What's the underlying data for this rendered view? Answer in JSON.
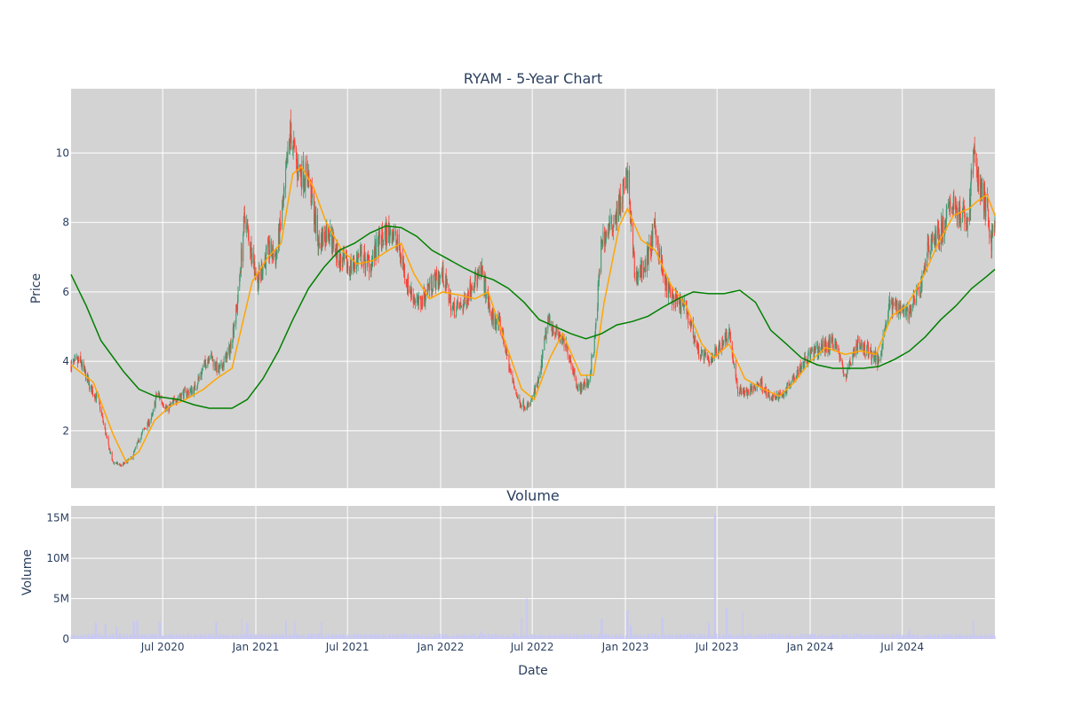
{
  "chart_data": {
    "type": "candlestick",
    "title": "RYAM - 5-Year Chart",
    "x_range": [
      "2020-01-02",
      "2024-12-31"
    ],
    "x_ticks": [
      {
        "date": "2020-07-01",
        "label": "Jul 2020"
      },
      {
        "date": "2021-01-01",
        "label": "Jan 2021"
      },
      {
        "date": "2021-07-01",
        "label": "Jul 2021"
      },
      {
        "date": "2022-01-01",
        "label": "Jan 2022"
      },
      {
        "date": "2022-07-01",
        "label": "Jul 2022"
      },
      {
        "date": "2023-01-01",
        "label": "Jan 2023"
      },
      {
        "date": "2023-07-01",
        "label": "Jul 2023"
      },
      {
        "date": "2024-01-01",
        "label": "Jan 2024"
      },
      {
        "date": "2024-07-01",
        "label": "Jul 2024"
      }
    ],
    "xlabel": "Date",
    "price_panel": {
      "ylabel": "Price",
      "ylim": [
        0.35,
        11.85
      ],
      "y_ticks": [
        2,
        4,
        6,
        8,
        10
      ],
      "up_color": "#3d9970",
      "down_color": "#ff4136",
      "price_path": [
        [
          "2020-01-02",
          3.9
        ],
        [
          "2020-01-20",
          4.0
        ],
        [
          "2020-02-10",
          3.2
        ],
        [
          "2020-02-25",
          2.9
        ],
        [
          "2020-03-12",
          1.8
        ],
        [
          "2020-03-24",
          1.1
        ],
        [
          "2020-04-10",
          1.0
        ],
        [
          "2020-04-30",
          1.2
        ],
        [
          "2020-05-20",
          1.9
        ],
        [
          "2020-06-10",
          2.4
        ],
        [
          "2020-06-20",
          3.1
        ],
        [
          "2020-07-10",
          2.6
        ],
        [
          "2020-08-01",
          3.0
        ],
        [
          "2020-09-01",
          3.2
        ],
        [
          "2020-10-01",
          4.2
        ],
        [
          "2020-10-20",
          3.7
        ],
        [
          "2020-11-10",
          4.3
        ],
        [
          "2020-11-25",
          5.6
        ],
        [
          "2020-12-10",
          8.2
        ],
        [
          "2020-12-20",
          7.4
        ],
        [
          "2021-01-05",
          6.3
        ],
        [
          "2021-01-25",
          7.2
        ],
        [
          "2021-02-10",
          7.0
        ],
        [
          "2021-02-25",
          8.6
        ],
        [
          "2021-03-10",
          10.6
        ],
        [
          "2021-03-25",
          9.5
        ],
        [
          "2021-04-15",
          9.3
        ],
        [
          "2021-05-05",
          7.4
        ],
        [
          "2021-05-25",
          7.8
        ],
        [
          "2021-06-15",
          6.9
        ],
        [
          "2021-07-05",
          6.7
        ],
        [
          "2021-07-25",
          7.0
        ],
        [
          "2021-08-15",
          6.8
        ],
        [
          "2021-09-05",
          7.5
        ],
        [
          "2021-09-25",
          7.8
        ],
        [
          "2021-10-10",
          7.3
        ],
        [
          "2021-10-30",
          6.1
        ],
        [
          "2021-11-20",
          5.6
        ],
        [
          "2021-12-10",
          6.2
        ],
        [
          "2022-01-05",
          6.5
        ],
        [
          "2022-01-25",
          5.5
        ],
        [
          "2022-02-15",
          5.6
        ],
        [
          "2022-03-05",
          6.3
        ],
        [
          "2022-03-25",
          6.5
        ],
        [
          "2022-04-10",
          5.3
        ],
        [
          "2022-04-30",
          5.0
        ],
        [
          "2022-05-20",
          3.6
        ],
        [
          "2022-06-05",
          2.8
        ],
        [
          "2022-06-25",
          2.7
        ],
        [
          "2022-07-15",
          3.5
        ],
        [
          "2022-08-01",
          5.2
        ],
        [
          "2022-08-20",
          4.8
        ],
        [
          "2022-09-10",
          4.3
        ],
        [
          "2022-09-30",
          3.2
        ],
        [
          "2022-10-20",
          3.4
        ],
        [
          "2022-11-01",
          4.5
        ],
        [
          "2022-11-15",
          7.5
        ],
        [
          "2022-12-01",
          7.8
        ],
        [
          "2022-12-20",
          8.5
        ],
        [
          "2023-01-05",
          9.3
        ],
        [
          "2023-01-20",
          6.4
        ],
        [
          "2023-02-10",
          6.8
        ],
        [
          "2023-03-01",
          7.8
        ],
        [
          "2023-03-20",
          6.2
        ],
        [
          "2023-04-10",
          5.7
        ],
        [
          "2023-05-01",
          5.5
        ],
        [
          "2023-05-25",
          4.3
        ],
        [
          "2023-06-15",
          4.0
        ],
        [
          "2023-07-05",
          4.4
        ],
        [
          "2023-07-25",
          4.9
        ],
        [
          "2023-08-10",
          3.2
        ],
        [
          "2023-09-01",
          3.1
        ],
        [
          "2023-09-25",
          3.4
        ],
        [
          "2023-10-15",
          2.9
        ],
        [
          "2023-11-10",
          3.1
        ],
        [
          "2023-12-05",
          3.7
        ],
        [
          "2024-01-01",
          4.2
        ],
        [
          "2024-01-25",
          4.4
        ],
        [
          "2024-02-20",
          4.6
        ],
        [
          "2024-03-10",
          3.5
        ],
        [
          "2024-04-01",
          4.5
        ],
        [
          "2024-04-25",
          4.3
        ],
        [
          "2024-05-15",
          4.0
        ],
        [
          "2024-06-05",
          5.6
        ],
        [
          "2024-06-25",
          5.6
        ],
        [
          "2024-07-15",
          5.4
        ],
        [
          "2024-08-05",
          6.1
        ],
        [
          "2024-08-25",
          7.5
        ],
        [
          "2024-09-15",
          7.7
        ],
        [
          "2024-10-10",
          8.6
        ],
        [
          "2024-10-25",
          8.1
        ],
        [
          "2024-11-10",
          8.2
        ],
        [
          "2024-11-18",
          10.1
        ],
        [
          "2024-12-01",
          9.0
        ],
        [
          "2024-12-15",
          8.4
        ],
        [
          "2024-12-24",
          7.4
        ],
        [
          "2024-12-31",
          8.3
        ]
      ],
      "moving_averages": [
        {
          "color": "#ffa500",
          "values": [
            [
              "2020-01-02",
              3.9
            ],
            [
              "2020-02-15",
              3.4
            ],
            [
              "2020-03-25",
              1.9
            ],
            [
              "2020-04-20",
              1.1
            ],
            [
              "2020-05-15",
              1.4
            ],
            [
              "2020-06-15",
              2.3
            ],
            [
              "2020-07-15",
              2.7
            ],
            [
              "2020-08-15",
              2.9
            ],
            [
              "2020-09-20",
              3.2
            ],
            [
              "2020-10-15",
              3.5
            ],
            [
              "2020-11-15",
              3.8
            ],
            [
              "2020-12-01",
              4.8
            ],
            [
              "2020-12-25",
              6.3
            ],
            [
              "2021-01-25",
              7.0
            ],
            [
              "2021-02-20",
              7.4
            ],
            [
              "2021-03-15",
              9.4
            ],
            [
              "2021-04-01",
              9.6
            ],
            [
              "2021-04-25",
              9.0
            ],
            [
              "2021-05-20",
              8.0
            ],
            [
              "2021-06-20",
              7.2
            ],
            [
              "2021-07-20",
              6.8
            ],
            [
              "2021-08-20",
              6.9
            ],
            [
              "2021-09-20",
              7.2
            ],
            [
              "2021-10-15",
              7.4
            ],
            [
              "2021-11-10",
              6.5
            ],
            [
              "2021-12-10",
              5.8
            ],
            [
              "2022-01-05",
              6.0
            ],
            [
              "2022-02-10",
              5.9
            ],
            [
              "2022-03-10",
              5.8
            ],
            [
              "2022-04-05",
              6.0
            ],
            [
              "2022-05-05",
              4.7
            ],
            [
              "2022-06-10",
              3.2
            ],
            [
              "2022-07-05",
              2.9
            ],
            [
              "2022-08-05",
              4.1
            ],
            [
              "2022-08-30",
              4.8
            ],
            [
              "2022-10-05",
              3.6
            ],
            [
              "2022-10-30",
              3.6
            ],
            [
              "2022-11-20",
              5.7
            ],
            [
              "2022-12-20",
              7.9
            ],
            [
              "2023-01-05",
              8.4
            ],
            [
              "2023-02-01",
              7.5
            ],
            [
              "2023-03-01",
              7.2
            ],
            [
              "2023-04-01",
              6.2
            ],
            [
              "2023-05-01",
              5.6
            ],
            [
              "2023-06-01",
              4.5
            ],
            [
              "2023-06-25",
              4.1
            ],
            [
              "2023-07-25",
              4.5
            ],
            [
              "2023-08-25",
              3.5
            ],
            [
              "2023-10-01",
              3.2
            ],
            [
              "2023-11-01",
              3.0
            ],
            [
              "2023-12-01",
              3.4
            ],
            [
              "2024-01-01",
              4.0
            ],
            [
              "2024-02-01",
              4.4
            ],
            [
              "2024-03-10",
              4.2
            ],
            [
              "2024-04-10",
              4.3
            ],
            [
              "2024-05-10",
              4.2
            ],
            [
              "2024-06-10",
              5.3
            ],
            [
              "2024-07-10",
              5.6
            ],
            [
              "2024-08-10",
              6.4
            ],
            [
              "2024-09-10",
              7.4
            ],
            [
              "2024-10-10",
              8.2
            ],
            [
              "2024-11-10",
              8.4
            ],
            [
              "2024-11-25",
              8.6
            ],
            [
              "2024-12-15",
              8.8
            ],
            [
              "2024-12-31",
              8.2
            ]
          ]
        },
        {
          "color": "#008000",
          "values": [
            [
              "2020-01-02",
              6.5
            ],
            [
              "2020-02-01",
              5.6
            ],
            [
              "2020-03-01",
              4.6
            ],
            [
              "2020-04-15",
              3.7
            ],
            [
              "2020-05-15",
              3.2
            ],
            [
              "2020-06-15",
              3.0
            ],
            [
              "2020-08-01",
              2.9
            ],
            [
              "2020-09-01",
              2.75
            ],
            [
              "2020-10-01",
              2.65
            ],
            [
              "2020-11-15",
              2.65
            ],
            [
              "2020-12-15",
              2.9
            ],
            [
              "2021-01-15",
              3.5
            ],
            [
              "2021-02-15",
              4.3
            ],
            [
              "2021-03-15",
              5.2
            ],
            [
              "2021-04-15",
              6.1
            ],
            [
              "2021-05-15",
              6.7
            ],
            [
              "2021-06-15",
              7.2
            ],
            [
              "2021-07-15",
              7.4
            ],
            [
              "2021-08-15",
              7.7
            ],
            [
              "2021-09-15",
              7.9
            ],
            [
              "2021-10-15",
              7.85
            ],
            [
              "2021-11-15",
              7.6
            ],
            [
              "2021-12-15",
              7.2
            ],
            [
              "2022-01-15",
              6.95
            ],
            [
              "2022-02-15",
              6.7
            ],
            [
              "2022-03-15",
              6.5
            ],
            [
              "2022-04-15",
              6.35
            ],
            [
              "2022-05-15",
              6.1
            ],
            [
              "2022-06-15",
              5.7
            ],
            [
              "2022-07-15",
              5.2
            ],
            [
              "2022-08-15",
              5.0
            ],
            [
              "2022-09-15",
              4.8
            ],
            [
              "2022-10-15",
              4.65
            ],
            [
              "2022-11-15",
              4.8
            ],
            [
              "2022-12-15",
              5.05
            ],
            [
              "2023-01-15",
              5.15
            ],
            [
              "2023-02-15",
              5.3
            ],
            [
              "2023-03-15",
              5.55
            ],
            [
              "2023-04-15",
              5.8
            ],
            [
              "2023-05-15",
              6.0
            ],
            [
              "2023-06-15",
              5.95
            ],
            [
              "2023-07-15",
              5.95
            ],
            [
              "2023-08-15",
              6.05
            ],
            [
              "2023-09-15",
              5.7
            ],
            [
              "2023-10-15",
              4.9
            ],
            [
              "2023-11-15",
              4.5
            ],
            [
              "2023-12-15",
              4.1
            ],
            [
              "2024-01-15",
              3.9
            ],
            [
              "2024-02-15",
              3.8
            ],
            [
              "2024-03-15",
              3.8
            ],
            [
              "2024-04-15",
              3.8
            ],
            [
              "2024-05-15",
              3.85
            ],
            [
              "2024-06-15",
              4.05
            ],
            [
              "2024-07-15",
              4.3
            ],
            [
              "2024-08-15",
              4.7
            ],
            [
              "2024-09-15",
              5.2
            ],
            [
              "2024-10-15",
              5.6
            ],
            [
              "2024-11-15",
              6.1
            ],
            [
              "2024-12-15",
              6.45
            ],
            [
              "2024-12-31",
              6.65
            ]
          ]
        }
      ]
    },
    "volume_panel": {
      "title": "Volume",
      "ylabel": "Volume",
      "ylim": [
        0,
        16500000
      ],
      "y_ticks": [
        {
          "value": 0,
          "label": "0"
        },
        {
          "value": 5000000,
          "label": "5M"
        },
        {
          "value": 10000000,
          "label": "10M"
        },
        {
          "value": 15000000,
          "label": "15M"
        }
      ],
      "bar_color": "#c8c8f4",
      "baseline": 550000,
      "spikes": [
        [
          "2020-02-20",
          2000000
        ],
        [
          "2020-03-10",
          1800000
        ],
        [
          "2020-04-01",
          1500000
        ],
        [
          "2020-05-05",
          2200000
        ],
        [
          "2020-05-12",
          2300000
        ],
        [
          "2020-06-25",
          2100000
        ],
        [
          "2020-10-15",
          2200000
        ],
        [
          "2020-12-05",
          2500000
        ],
        [
          "2020-12-15",
          2000000
        ],
        [
          "2021-03-01",
          2300000
        ],
        [
          "2021-03-20",
          2100000
        ],
        [
          "2021-05-10",
          2000000
        ],
        [
          "2022-03-20",
          1000000
        ],
        [
          "2022-06-10",
          2600000
        ],
        [
          "2022-06-20",
          5000000
        ],
        [
          "2022-11-15",
          2500000
        ],
        [
          "2023-01-05",
          3500000
        ],
        [
          "2023-01-12",
          1700000
        ],
        [
          "2023-03-15",
          2600000
        ],
        [
          "2023-06-15",
          2000000
        ],
        [
          "2023-06-27",
          15500000
        ],
        [
          "2023-07-20",
          3800000
        ],
        [
          "2023-08-20",
          3500000
        ],
        [
          "2024-07-15",
          1200000
        ],
        [
          "2024-11-18",
          2300000
        ]
      ]
    }
  }
}
